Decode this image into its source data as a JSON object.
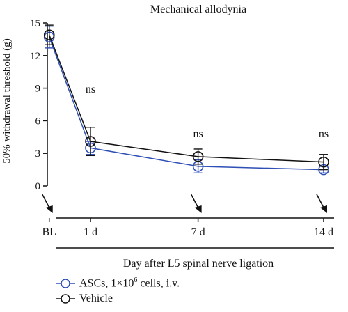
{
  "chart_data": {
    "type": "line",
    "title": "Mechanical allodynia",
    "ylabel": "50% withdrawal threshold (g)",
    "xlabel": "Day after L5 spinal nerve ligation",
    "x_categories": [
      "BL",
      "1 d",
      "7 d",
      "14 d"
    ],
    "x_days": [
      -1.3,
      1,
      7,
      14
    ],
    "ylim": [
      0,
      15
    ],
    "y_ticks": [
      "15",
      "12",
      "9",
      "6",
      "3",
      "0"
    ],
    "y_tick_values": [
      15,
      12,
      9,
      6,
      3,
      0
    ],
    "series": [
      {
        "name": "ASCs, 1×10",
        "name_sup": "6",
        "name_suffix": " cells, i.v.",
        "color": "#2e4fb5",
        "x_days": [
          -1.3,
          1,
          7,
          14
        ],
        "values": [
          13.7,
          3.5,
          1.8,
          1.5
        ],
        "errors": [
          1.0,
          0.6,
          0.6,
          0.3
        ]
      },
      {
        "name": "Vehicle",
        "color": "#111111",
        "x_days": [
          -1.3,
          1,
          7,
          14
        ],
        "values": [
          13.9,
          4.1,
          2.7,
          2.2
        ],
        "errors": [
          0.9,
          1.3,
          0.7,
          0.7
        ]
      }
    ],
    "annotations": [
      {
        "text": "ns",
        "x_day": 1,
        "y": 8.6
      },
      {
        "text": "ns",
        "x_day": 7,
        "y": 4.5
      },
      {
        "text": "ns",
        "x_day": 14,
        "y": 4.5
      }
    ],
    "arrows_at_days": [
      -1.3,
      7,
      14
    ],
    "legend_position": "bottom-left"
  }
}
